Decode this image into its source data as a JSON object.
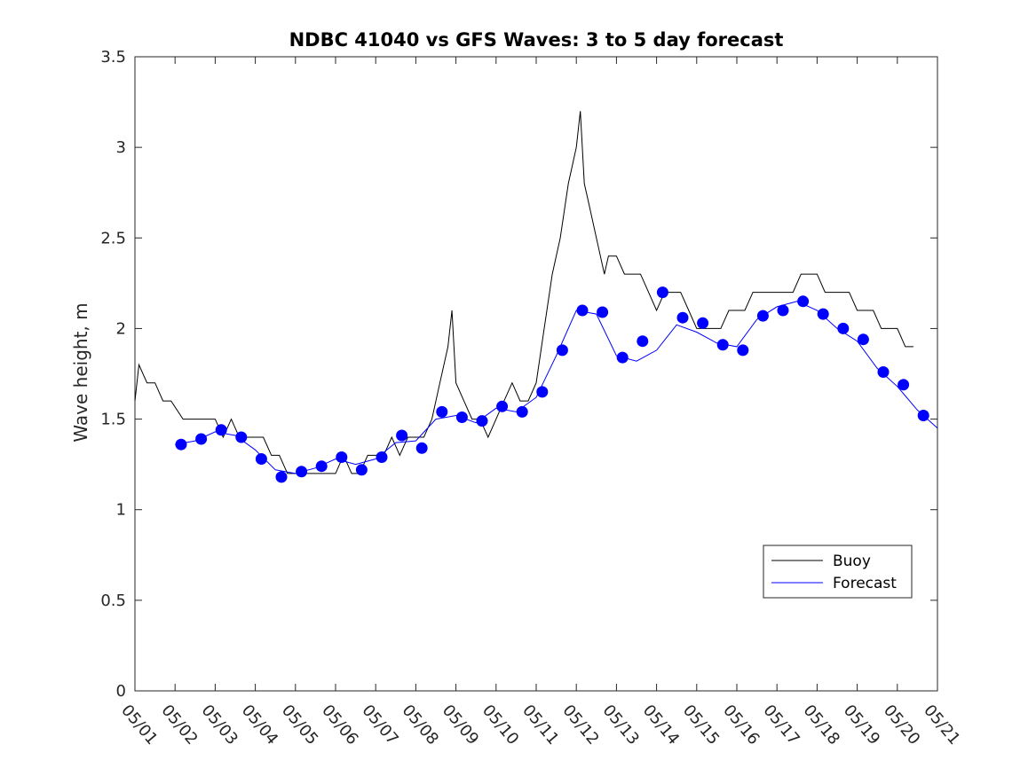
{
  "chart_data": {
    "type": "line",
    "title": "NDBC 41040 vs GFS Waves: 3 to 5 day forecast",
    "xlabel": "",
    "ylabel": "Wave height, m",
    "xlim": [
      "05/01",
      "05/21"
    ],
    "ylim": [
      0,
      3.5
    ],
    "yticks": [
      "0",
      "0.5",
      "1",
      "1.5",
      "2",
      "2.5",
      "3",
      "3.5"
    ],
    "xticks": [
      "05/01",
      "05/02",
      "05/03",
      "05/04",
      "05/05",
      "05/06",
      "05/07",
      "05/08",
      "05/09",
      "05/10",
      "05/11",
      "05/12",
      "05/13",
      "05/14",
      "05/15",
      "05/16",
      "05/17",
      "05/18",
      "05/19",
      "05/20",
      "05/21"
    ],
    "grid": false,
    "legend_position": "bottom-right",
    "colors": {
      "buoy": "#000000",
      "forecast": "#0000ff",
      "marker": "#0000ff"
    },
    "legend": [
      "Buoy",
      "Forecast"
    ],
    "series": [
      {
        "name": "Buoy",
        "x_day": [
          1.0,
          1.1,
          1.3,
          1.5,
          1.7,
          1.9,
          2.2,
          2.5,
          2.8,
          3.0,
          3.2,
          3.4,
          3.6,
          3.8,
          4.0,
          4.2,
          4.4,
          4.6,
          4.8,
          5.0,
          5.2,
          5.4,
          5.6,
          5.8,
          6.0,
          6.2,
          6.4,
          6.6,
          6.8,
          7.0,
          7.2,
          7.4,
          7.6,
          7.8,
          8.0,
          8.2,
          8.4,
          8.6,
          8.8,
          8.9,
          9.0,
          9.2,
          9.4,
          9.6,
          9.8,
          10.0,
          10.2,
          10.4,
          10.6,
          10.8,
          11.0,
          11.2,
          11.4,
          11.6,
          11.8,
          11.9,
          12.0,
          12.1,
          12.2,
          12.3,
          12.4,
          12.5,
          12.6,
          12.7,
          12.8,
          13.0,
          13.2,
          13.4,
          13.6,
          13.8,
          14.0,
          14.2,
          14.4,
          14.6,
          14.8,
          15.0,
          15.2,
          15.4,
          15.6,
          15.8,
          16.0,
          16.2,
          16.4,
          16.6,
          16.8,
          17.0,
          17.2,
          17.4,
          17.6,
          17.8,
          18.0,
          18.2,
          18.4,
          18.6,
          18.8,
          19.0,
          19.2,
          19.4,
          19.6,
          19.8,
          20.0,
          20.2,
          20.4
        ],
        "values": [
          1.6,
          1.8,
          1.7,
          1.7,
          1.6,
          1.6,
          1.5,
          1.5,
          1.5,
          1.5,
          1.4,
          1.5,
          1.4,
          1.4,
          1.4,
          1.4,
          1.3,
          1.3,
          1.2,
          1.2,
          1.2,
          1.2,
          1.2,
          1.2,
          1.2,
          1.3,
          1.2,
          1.2,
          1.3,
          1.3,
          1.3,
          1.4,
          1.3,
          1.4,
          1.4,
          1.4,
          1.5,
          1.7,
          1.9,
          2.1,
          1.7,
          1.6,
          1.5,
          1.5,
          1.4,
          1.5,
          1.6,
          1.7,
          1.6,
          1.6,
          1.7,
          2.0,
          2.3,
          2.5,
          2.8,
          2.9,
          3.0,
          3.2,
          2.8,
          2.7,
          2.6,
          2.5,
          2.4,
          2.3,
          2.4,
          2.4,
          2.3,
          2.3,
          2.3,
          2.2,
          2.1,
          2.2,
          2.2,
          2.2,
          2.1,
          2.0,
          2.0,
          2.0,
          2.0,
          2.1,
          2.1,
          2.1,
          2.2,
          2.2,
          2.2,
          2.2,
          2.2,
          2.2,
          2.3,
          2.3,
          2.3,
          2.2,
          2.2,
          2.2,
          2.2,
          2.1,
          2.1,
          2.1,
          2.0,
          2.0,
          2.0,
          1.9,
          1.9
        ]
      },
      {
        "name": "Forecast",
        "x_day": [
          2.0,
          2.5,
          3.0,
          3.5,
          4.0,
          4.5,
          5.0,
          5.5,
          6.0,
          6.5,
          7.0,
          7.5,
          8.0,
          8.5,
          9.0,
          9.5,
          10.0,
          10.5,
          11.0,
          11.5,
          12.0,
          12.5,
          13.0,
          13.5,
          14.0,
          14.5,
          15.0,
          15.5,
          16.0,
          16.5,
          17.0,
          17.5,
          18.0,
          18.5,
          19.0,
          19.5,
          20.0,
          20.5,
          21.0
        ],
        "values": [
          1.36,
          1.38,
          1.43,
          1.41,
          1.33,
          1.22,
          1.2,
          1.23,
          1.28,
          1.25,
          1.28,
          1.37,
          1.38,
          1.5,
          1.52,
          1.48,
          1.56,
          1.54,
          1.62,
          1.85,
          2.1,
          2.08,
          1.85,
          1.82,
          1.88,
          2.02,
          1.98,
          1.92,
          1.9,
          2.05,
          2.12,
          2.15,
          2.1,
          2.0,
          1.93,
          1.78,
          1.68,
          1.55,
          1.45
        ]
      }
    ],
    "forecast_markers": {
      "x_day": [
        2.15,
        2.65,
        3.15,
        3.65,
        4.15,
        4.65,
        5.15,
        5.65,
        6.15,
        6.65,
        7.15,
        7.65,
        8.15,
        8.65,
        9.15,
        9.65,
        10.15,
        10.65,
        11.15,
        11.65,
        12.15,
        12.65,
        13.15,
        13.65,
        14.15,
        14.65,
        15.15,
        15.65,
        16.15,
        16.65,
        17.15,
        17.65,
        18.15,
        18.65,
        19.15,
        19.65,
        20.15,
        20.65
      ],
      "values": [
        1.36,
        1.39,
        1.44,
        1.4,
        1.28,
        1.18,
        1.21,
        1.24,
        1.29,
        1.22,
        1.29,
        1.41,
        1.34,
        1.54,
        1.51,
        1.49,
        1.57,
        1.54,
        1.65,
        1.88,
        2.1,
        2.09,
        1.84,
        1.93,
        2.2,
        2.06,
        2.03,
        1.91,
        1.88,
        2.07,
        2.1,
        2.15,
        2.08,
        2.0,
        1.94,
        1.76,
        1.69,
        1.52
      ]
    }
  }
}
